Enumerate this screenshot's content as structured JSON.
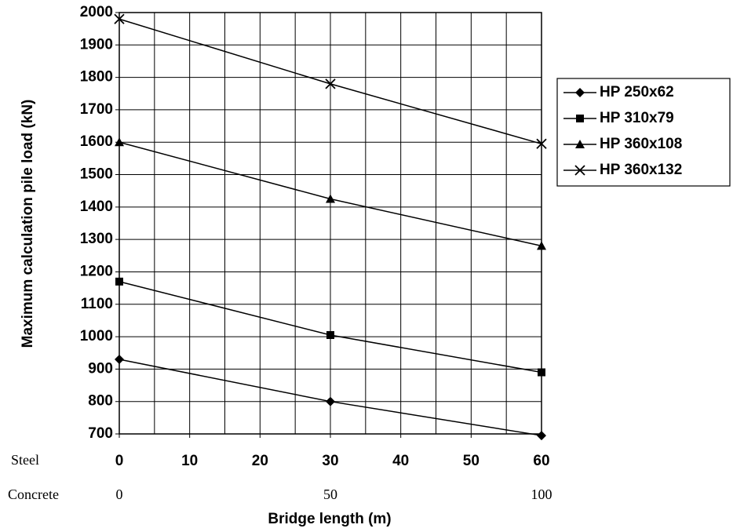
{
  "chart_data": {
    "type": "line",
    "xlabel": "Bridge length (m)",
    "ylabel": "Maximum calculation pile load (kN)",
    "x": [
      0,
      30,
      60
    ],
    "xlim": [
      0,
      60
    ],
    "xticks": [
      0,
      10,
      20,
      30,
      40,
      50,
      60
    ],
    "x_minor_grid": [
      5,
      15,
      25,
      35,
      45,
      55
    ],
    "xtick_row_label": "Steel",
    "x2lim": [
      0,
      100
    ],
    "x2ticks": [
      0,
      50,
      100
    ],
    "x2tick_row_label": "Concrete",
    "ylim": [
      700,
      2000
    ],
    "yticks": [
      700,
      800,
      900,
      1000,
      1100,
      1200,
      1300,
      1400,
      1500,
      1600,
      1700,
      1800,
      1900,
      2000
    ],
    "grid": true,
    "legend": "right",
    "series": [
      {
        "name": "HP 250x62",
        "color": "#000000",
        "marker": "diamond",
        "values": [
          930,
          800,
          695
        ]
      },
      {
        "name": "HP 310x79",
        "color": "#000000",
        "marker": "square",
        "values": [
          1170,
          1005,
          890
        ]
      },
      {
        "name": "HP 360x108",
        "color": "#000000",
        "marker": "triangle",
        "values": [
          1600,
          1425,
          1280
        ]
      },
      {
        "name": "HP 360x132",
        "color": "#000000",
        "marker": "x",
        "values": [
          1980,
          1780,
          1595
        ]
      }
    ]
  }
}
